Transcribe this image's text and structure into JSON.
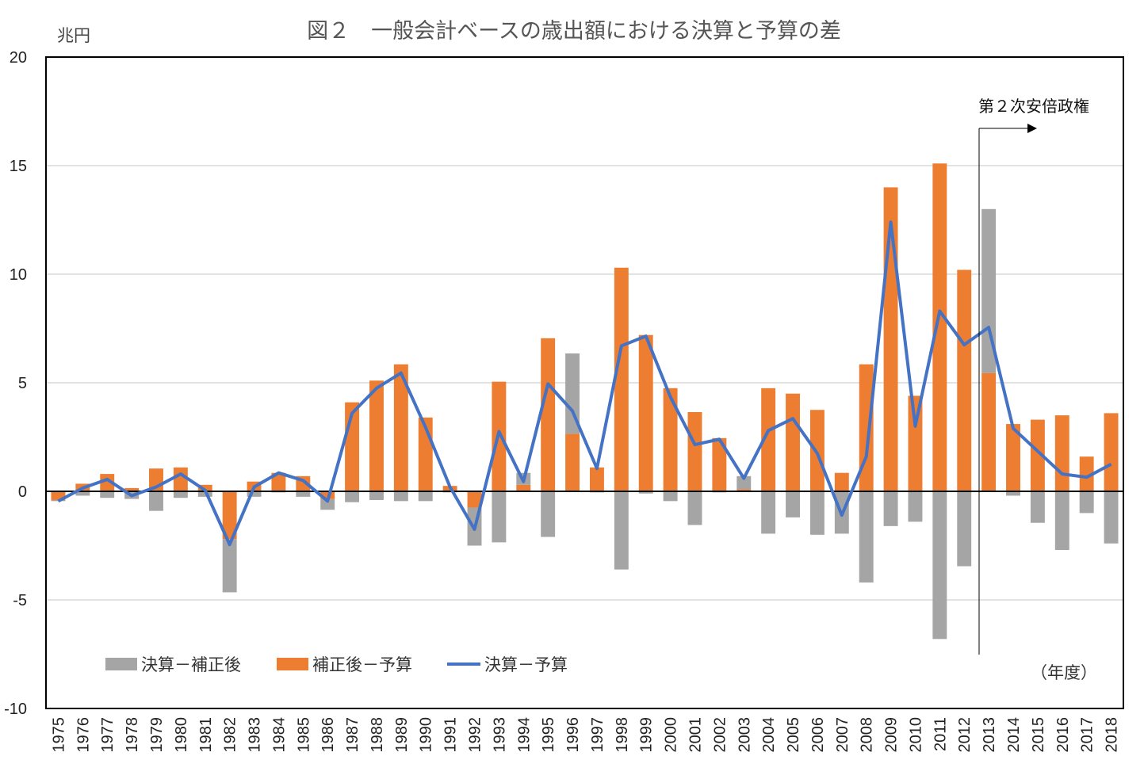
{
  "chart_data": {
    "type": "bar",
    "title": "図２　一般会計ベースの歳出額における決算と予算の差",
    "ylabel": "兆円",
    "xlabel": "（年度）",
    "ylim": [
      -10,
      20
    ],
    "yticks": [
      20,
      15,
      10,
      5,
      0,
      -5,
      -10
    ],
    "grid": true,
    "legend_position": "bottom-left",
    "annotation": {
      "text": "第２次安倍政権",
      "x": "2013"
    },
    "categories": [
      "1975",
      "1976",
      "1977",
      "1978",
      "1979",
      "1980",
      "1981",
      "1982",
      "1983",
      "1984",
      "1985",
      "1986",
      "1987",
      "1988",
      "1989",
      "1990",
      "1991",
      "1992",
      "1993",
      "1994",
      "1995",
      "1996",
      "1997",
      "1998",
      "1999",
      "2000",
      "2001",
      "2002",
      "2003",
      "2004",
      "2005",
      "2006",
      "2007",
      "2008",
      "2009",
      "2010",
      "2011",
      "2012",
      "2013",
      "2014",
      "2015",
      "2016",
      "2017",
      "2018"
    ],
    "series": [
      {
        "name": "決算－補正後",
        "kind": "bar",
        "color": "#a5a5a5",
        "values": [
          -0.05,
          -0.2,
          -0.3,
          -0.35,
          -0.9,
          -0.3,
          -0.25,
          -2.45,
          -0.25,
          -0.05,
          -0.25,
          -0.5,
          -0.5,
          -0.4,
          -0.45,
          -0.45,
          -0.05,
          -1.75,
          -2.35,
          0.55,
          -2.1,
          3.7,
          -0.05,
          -3.6,
          -0.1,
          -0.45,
          -1.55,
          -0.05,
          0.6,
          -1.95,
          -1.2,
          -2.0,
          -1.95,
          -4.2,
          -1.6,
          -1.4,
          -6.8,
          -3.45,
          7.55,
          -0.2,
          -1.45,
          -2.7,
          -1.0,
          -2.4
        ]
      },
      {
        "name": "補正後－予算",
        "kind": "bar",
        "color": "#ed7d31",
        "values": [
          -0.4,
          0.35,
          0.8,
          0.15,
          1.05,
          1.1,
          0.3,
          -2.2,
          0.45,
          0.85,
          0.7,
          -0.35,
          4.1,
          5.1,
          5.85,
          3.4,
          0.25,
          -0.75,
          5.05,
          0.3,
          7.05,
          2.65,
          1.1,
          10.3,
          7.2,
          4.75,
          3.65,
          2.45,
          0.1,
          4.75,
          4.5,
          3.75,
          0.85,
          5.85,
          14.0,
          4.4,
          15.1,
          10.2,
          5.45,
          3.1,
          3.3,
          3.5,
          1.6,
          3.6
        ]
      },
      {
        "name": "決算－予算",
        "kind": "line",
        "color": "#4472c4",
        "values": [
          -0.45,
          0.15,
          0.55,
          -0.2,
          0.2,
          0.8,
          0.05,
          -2.45,
          0.2,
          0.85,
          0.5,
          -0.45,
          3.6,
          4.75,
          5.45,
          2.95,
          0.2,
          -1.75,
          2.75,
          0.45,
          4.95,
          3.7,
          1.05,
          6.7,
          7.15,
          4.35,
          2.15,
          2.4,
          0.6,
          2.8,
          3.35,
          1.75,
          -1.1,
          1.6,
          12.4,
          3.0,
          8.3,
          6.75,
          7.55,
          2.9,
          1.85,
          0.8,
          0.65,
          1.25
        ]
      }
    ]
  }
}
